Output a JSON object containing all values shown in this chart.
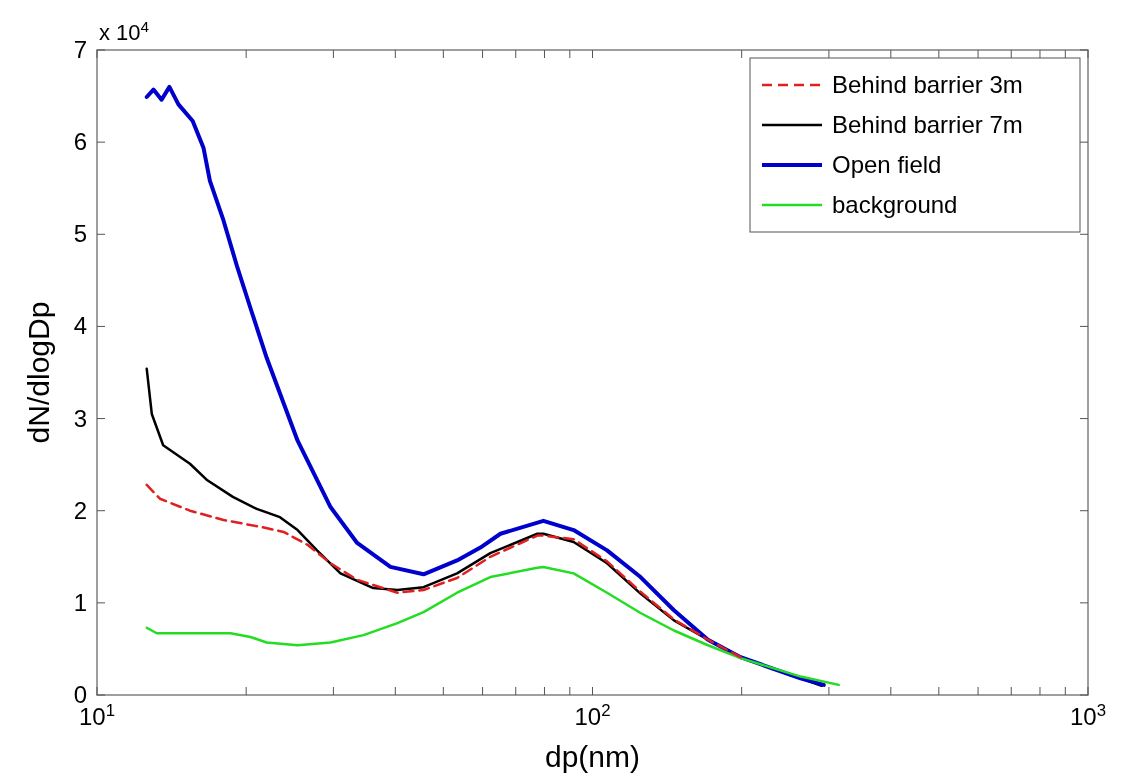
{
  "chart_data": {
    "type": "line",
    "xlabel": "dp(nm)",
    "ylabel": "dN/dlogDp",
    "annotations": [
      "x 10$^{4}$"
    ],
    "log": "x",
    "xlim": [
      10,
      1000
    ],
    "xticks": [
      {
        "value": 10,
        "label": "10$^{1}$"
      },
      {
        "value": 20,
        "label": null
      },
      {
        "value": 30,
        "label": null
      },
      {
        "value": 40,
        "label": null
      },
      {
        "value": 50,
        "label": null
      },
      {
        "value": 60,
        "label": null
      },
      {
        "value": 70,
        "label": null
      },
      {
        "value": 80,
        "label": null
      },
      {
        "value": 90,
        "label": null
      },
      {
        "value": 100,
        "label": "10$^{2}$"
      },
      {
        "value": 200,
        "label": null
      },
      {
        "value": 300,
        "label": null
      },
      {
        "value": 400,
        "label": null
      },
      {
        "value": 500,
        "label": null
      },
      {
        "value": 600,
        "label": null
      },
      {
        "value": 700,
        "label": null
      },
      {
        "value": 800,
        "label": null
      },
      {
        "value": 900,
        "label": null
      },
      {
        "value": 1000,
        "label": "10$^{3}$"
      }
    ],
    "ylim": [
      0,
      7
    ],
    "yticks": [
      0,
      1,
      2,
      3,
      4,
      5,
      6,
      7
    ],
    "grid": false,
    "legend": "top right",
    "marker": "none",
    "series": [
      {
        "name": "Behind barrier 3m",
        "color": "#e02020",
        "line_style": "dashed",
        "x": [
          12.6,
          13.4,
          15.4,
          18.0,
          21.6,
          23.8,
          26.6,
          29.6,
          33.5,
          40.4,
          45.6,
          53.3,
          62.2,
          77.4,
          79.6,
          91.6,
          107,
          125,
          146,
          171,
          199
        ],
        "values": [
          2.28,
          2.13,
          2.0,
          1.9,
          1.82,
          1.77,
          1.63,
          1.43,
          1.25,
          1.11,
          1.14,
          1.27,
          1.5,
          1.73,
          1.73,
          1.69,
          1.45,
          1.12,
          0.82,
          0.6,
          0.41
        ]
      },
      {
        "name": "Behind barrier 7m",
        "color": "#000000",
        "line_style": "solid",
        "x": [
          12.6,
          12.9,
          13.6,
          15.4,
          16.7,
          18.8,
          21.0,
          23.4,
          25.4,
          27.8,
          31.0,
          36.1,
          40.4,
          45.6,
          53.3,
          62.2,
          77.4,
          79.6,
          91.6,
          107,
          125,
          146,
          171,
          199,
          263,
          290
        ],
        "values": [
          3.54,
          3.05,
          2.71,
          2.51,
          2.33,
          2.15,
          2.02,
          1.93,
          1.79,
          1.57,
          1.32,
          1.16,
          1.14,
          1.17,
          1.32,
          1.54,
          1.75,
          1.75,
          1.66,
          1.43,
          1.1,
          0.81,
          0.6,
          0.41,
          0.18,
          0.1
        ]
      },
      {
        "name": "Open field",
        "color": "#0000cc",
        "line_style": "solid",
        "x": [
          12.6,
          13.0,
          13.5,
          14.0,
          14.6,
          15.6,
          16.4,
          16.9,
          18.0,
          19.2,
          20.4,
          22.0,
          25.4,
          29.6,
          33.5,
          39.1,
          45.6,
          53.3,
          59.4,
          65.2,
          79.6,
          91.6,
          107,
          125,
          146,
          171,
          199,
          263,
          293
        ],
        "values": [
          6.49,
          6.57,
          6.46,
          6.6,
          6.41,
          6.23,
          5.94,
          5.58,
          5.15,
          4.64,
          4.2,
          3.66,
          2.76,
          2.04,
          1.65,
          1.39,
          1.31,
          1.46,
          1.6,
          1.75,
          1.89,
          1.79,
          1.57,
          1.28,
          0.92,
          0.6,
          0.41,
          0.18,
          0.11
        ]
      },
      {
        "name": "background",
        "color": "#22dd22",
        "line_style": "solid",
        "x": [
          12.6,
          13.2,
          15.4,
          18.6,
          20.4,
          22.0,
          25.4,
          29.6,
          34.5,
          40.4,
          45.6,
          53.3,
          62.2,
          77.4,
          79.6,
          91.6,
          107,
          125,
          146,
          171,
          199,
          263,
          314
        ],
        "values": [
          0.73,
          0.67,
          0.67,
          0.67,
          0.63,
          0.57,
          0.54,
          0.57,
          0.65,
          0.78,
          0.9,
          1.11,
          1.28,
          1.38,
          1.39,
          1.32,
          1.11,
          0.89,
          0.7,
          0.54,
          0.4,
          0.2,
          0.11
        ]
      }
    ]
  }
}
